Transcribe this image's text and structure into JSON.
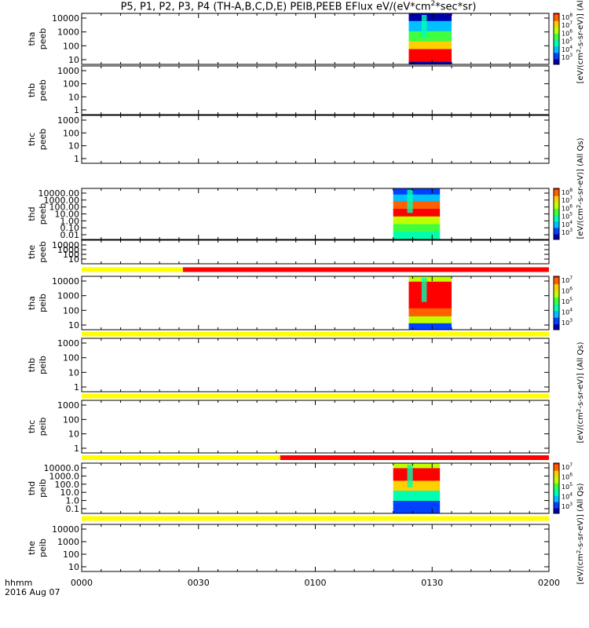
{
  "title": "P5, P1, P2, P3, P4 (TH-A,B,C,D,E) PEIB,PEEB EFlux eV/(eV*cm2*sec*sr)",
  "title_parts": {
    "main": "P5, P1, P2, P3, P4 (TH-A,B,C,D,E) PEIB,PEEB EFlux eV/(eV*cm",
    "sup": "2",
    "tail": "*sec*sr)"
  },
  "time_axis": {
    "tick_labels": [
      "0000",
      "0030",
      "0100",
      "0130",
      "0200"
    ],
    "left_label": "hhmm",
    "date_label": "2016 Aug 07",
    "range_minutes": [
      0,
      120
    ]
  },
  "colors": {
    "bar_yellow": "#ffff00",
    "bar_red": "#ff0000",
    "spectrogram": [
      "#0000aa",
      "#0040ff",
      "#00c0ff",
      "#00ffb0",
      "#40ff40",
      "#c0ff00",
      "#ffd000",
      "#ff6000",
      "#ff0000"
    ]
  },
  "colorbar": {
    "label_electron_top": "[eV/(cm",
    "label_electron_top_tail": "-s-sr-eV)] (All",
    "label_electron_mid": "[eV/(cm",
    "label_electron_mid_tail": "-s-sr-eV)] (All Qs)",
    "label_ion": "[eV/(cm",
    "label_ion_tail": "-s-sr-eV)] (All Qs)"
  },
  "panels": [
    {
      "probe": "tha",
      "product": "peeb",
      "yticks": [
        "10000",
        "1000",
        "100",
        "10"
      ]
    },
    {
      "probe": "thb",
      "product": "peeb",
      "yticks": [
        "1000",
        "100",
        "10",
        "1"
      ]
    },
    {
      "probe": "thc",
      "product": "peeb",
      "yticks": [
        "1000",
        "100",
        "10",
        "1"
      ]
    },
    {
      "probe": "thd",
      "product": "peeb",
      "yticks": [
        "10000.00",
        "1000.00",
        "100.00",
        "10.00",
        "1.00",
        "0.10",
        "0.01"
      ]
    },
    {
      "probe": "the",
      "product": "peeb",
      "yticks": [
        "10000",
        "1000",
        "100",
        "10"
      ]
    },
    {
      "probe": "tha",
      "product": "peib",
      "yticks": [
        "10000",
        "1000",
        "100",
        "10"
      ]
    },
    {
      "probe": "thb",
      "product": "peib",
      "yticks": [
        "1000",
        "100",
        "10",
        "1"
      ]
    },
    {
      "probe": "thc",
      "product": "peib",
      "yticks": [
        "1000",
        "100",
        "10",
        "1"
      ]
    },
    {
      "probe": "thd",
      "product": "peib",
      "yticks": [
        "10000.0",
        "1000.0",
        "100.0",
        "10.0",
        "1.0",
        "0.1"
      ]
    },
    {
      "probe": "the",
      "product": "peib",
      "yticks": [
        "10000",
        "1000",
        "100",
        "10"
      ]
    }
  ],
  "colorbars": [
    {
      "exponents": [
        "8",
        "7",
        "6",
        "5",
        "4",
        "3"
      ]
    },
    {
      "exponents": [
        "8",
        "7",
        "6",
        "5",
        "4",
        "3"
      ]
    },
    {
      "exponents": [
        "7",
        "6",
        "5",
        "4",
        "3"
      ]
    },
    {
      "exponents": [
        "7",
        "6",
        "5",
        "4",
        "3"
      ]
    }
  ],
  "chart_data": {
    "type": "heatmap",
    "title": "P5, P1, P2, P3, P4 (TH-A,B,C,D,E) PEIB,PEEB EFlux eV/(eV*cm2*sec*sr)",
    "x_label": "hhmm",
    "date": "2016 Aug 07",
    "x_tick_labels": [
      "0000",
      "0030",
      "0100",
      "0130",
      "0200"
    ],
    "x_range_minutes": [
      0,
      120
    ],
    "z_unit": "eV/(cm2-s-sr-eV)",
    "panels": [
      {
        "name": "tha peeb",
        "data_interval_minutes": [
          84,
          95
        ],
        "colorbar_exponents": [
          3,
          8
        ]
      },
      {
        "name": "thb peeb",
        "data_interval_minutes": null
      },
      {
        "name": "thc peeb",
        "data_interval_minutes": null
      },
      {
        "name": "thd peeb",
        "data_interval_minutes": [
          80,
          92
        ],
        "colorbar_exponents": [
          3,
          8
        ]
      },
      {
        "name": "the peeb",
        "data_interval_minutes": null
      },
      {
        "name": "tha peib",
        "data_interval_minutes": [
          84,
          95
        ],
        "colorbar_exponents": [
          3,
          7
        ]
      },
      {
        "name": "thb peib",
        "data_interval_minutes": null
      },
      {
        "name": "thc peib",
        "data_interval_minutes": null
      },
      {
        "name": "thd peib",
        "data_interval_minutes": [
          80,
          92
        ],
        "colorbar_exponents": [
          3,
          7
        ]
      },
      {
        "name": "the peib",
        "data_interval_minutes": null
      }
    ],
    "mode_bars": [
      {
        "after_panel": "the peeb",
        "yellow_minutes": [
          0,
          26
        ],
        "red_minutes": [
          26,
          120
        ]
      },
      {
        "after_panel": "tha peib",
        "yellow_minutes": [
          0,
          120
        ],
        "red_minutes": null
      },
      {
        "after_panel": "thb peib",
        "yellow_minutes": [
          0,
          120
        ],
        "red_minutes": null
      },
      {
        "after_panel": "thc peib",
        "yellow_minutes": [
          0,
          51
        ],
        "red_minutes": [
          51,
          120
        ]
      },
      {
        "after_panel": "thd peib",
        "yellow_minutes": [
          0,
          120
        ],
        "red_minutes": null
      }
    ]
  }
}
